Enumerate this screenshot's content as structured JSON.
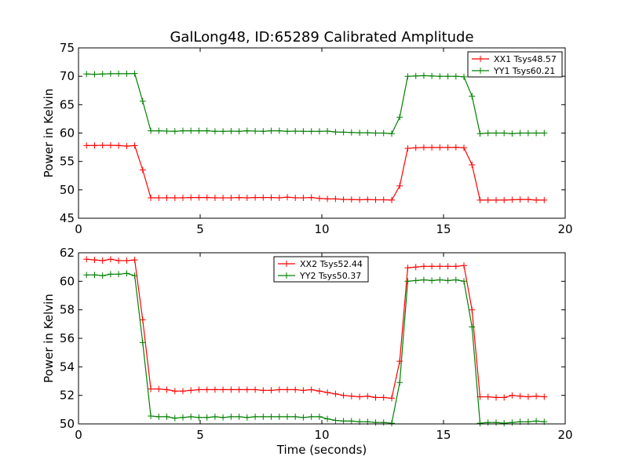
{
  "title": "GalLong48, ID:65289 Calibrated Amplitude",
  "xlabel": "Time (seconds)",
  "chart_data": [
    {
      "type": "line",
      "title": "GalLong48, ID:65289 Calibrated Amplitude",
      "xlabel": "",
      "ylabel": "Power in Kelvin",
      "xlim": [
        0,
        20
      ],
      "ylim": [
        45,
        75
      ],
      "xticks": [
        0,
        5,
        10,
        15,
        20
      ],
      "yticks": [
        45,
        50,
        55,
        60,
        65,
        70,
        75
      ],
      "legend": "top-right",
      "grid": false,
      "series": [
        {
          "name": "XX1 Tsys48.57",
          "color": "#ff0000",
          "x": [
            0.33,
            0.66,
            0.99,
            1.32,
            1.65,
            1.98,
            2.31,
            2.64,
            2.97,
            3.3,
            3.63,
            3.96,
            4.29,
            4.62,
            4.95,
            5.28,
            5.61,
            5.94,
            6.27,
            6.6,
            6.93,
            7.26,
            7.59,
            7.92,
            8.25,
            8.58,
            8.91,
            9.24,
            9.57,
            9.9,
            10.23,
            10.56,
            10.89,
            11.22,
            11.55,
            11.88,
            12.21,
            12.54,
            12.87,
            13.2,
            13.53,
            13.86,
            14.19,
            14.52,
            14.85,
            15.18,
            15.51,
            15.84,
            16.17,
            16.5,
            16.83,
            17.16,
            17.49,
            17.82,
            18.15,
            18.48,
            18.81,
            19.14
          ],
          "values": [
            57.8,
            57.8,
            57.85,
            57.85,
            57.8,
            57.7,
            57.8,
            53.5,
            48.6,
            48.6,
            48.6,
            48.6,
            48.6,
            48.65,
            48.65,
            48.65,
            48.6,
            48.6,
            48.6,
            48.65,
            48.6,
            48.65,
            48.65,
            48.65,
            48.6,
            48.7,
            48.6,
            48.6,
            48.65,
            48.5,
            48.4,
            48.4,
            48.3,
            48.3,
            48.25,
            48.3,
            48.25,
            48.25,
            48.2,
            50.7,
            57.3,
            57.4,
            57.45,
            57.45,
            57.45,
            57.45,
            57.5,
            57.4,
            54.4,
            48.2,
            48.2,
            48.2,
            48.2,
            48.25,
            48.3,
            48.3,
            48.2,
            48.2
          ]
        },
        {
          "name": "YY1 Tsys60.21",
          "color": "#008000",
          "x": [
            0.33,
            0.66,
            0.99,
            1.32,
            1.65,
            1.98,
            2.31,
            2.64,
            2.97,
            3.3,
            3.63,
            3.96,
            4.29,
            4.62,
            4.95,
            5.28,
            5.61,
            5.94,
            6.27,
            6.6,
            6.93,
            7.26,
            7.59,
            7.92,
            8.25,
            8.58,
            8.91,
            9.24,
            9.57,
            9.9,
            10.23,
            10.56,
            10.89,
            11.22,
            11.55,
            11.88,
            12.21,
            12.54,
            12.87,
            13.2,
            13.53,
            13.86,
            14.19,
            14.52,
            14.85,
            15.18,
            15.51,
            15.84,
            16.17,
            16.5,
            16.83,
            17.16,
            17.49,
            17.82,
            18.15,
            18.48,
            18.81,
            19.14
          ],
          "values": [
            70.4,
            70.35,
            70.4,
            70.45,
            70.45,
            70.45,
            70.5,
            65.6,
            60.4,
            60.4,
            60.35,
            60.3,
            60.4,
            60.4,
            60.4,
            60.4,
            60.3,
            60.3,
            60.35,
            60.3,
            60.4,
            60.35,
            60.3,
            60.4,
            60.4,
            60.3,
            60.35,
            60.3,
            60.3,
            60.3,
            60.35,
            60.2,
            60.15,
            60.1,
            60.05,
            60.05,
            60.0,
            60.0,
            59.9,
            62.8,
            70.0,
            70.05,
            70.1,
            70.05,
            70.0,
            70.0,
            70.0,
            69.9,
            66.5,
            59.9,
            60.0,
            60.0,
            60.0,
            59.9,
            60.0,
            60.0,
            60.0,
            60.0
          ]
        }
      ]
    },
    {
      "type": "line",
      "title": "",
      "xlabel": "Time (seconds)",
      "ylabel": "Power in Kelvin",
      "xlim": [
        0,
        20
      ],
      "ylim": [
        50,
        62
      ],
      "xticks": [
        0,
        5,
        10,
        15,
        20
      ],
      "yticks": [
        50,
        52,
        54,
        56,
        58,
        60,
        62
      ],
      "legend": "top-center",
      "grid": false,
      "series": [
        {
          "name": "XX2 Tsys52.44",
          "color": "#ff0000",
          "x": [
            0.33,
            0.66,
            0.99,
            1.32,
            1.65,
            1.98,
            2.31,
            2.64,
            2.97,
            3.3,
            3.63,
            3.96,
            4.29,
            4.62,
            4.95,
            5.28,
            5.61,
            5.94,
            6.27,
            6.6,
            6.93,
            7.26,
            7.59,
            7.92,
            8.25,
            8.58,
            8.91,
            9.24,
            9.57,
            9.9,
            10.23,
            10.56,
            10.89,
            11.22,
            11.55,
            11.88,
            12.21,
            12.54,
            12.87,
            13.2,
            13.53,
            13.86,
            14.19,
            14.52,
            14.85,
            15.18,
            15.51,
            15.84,
            16.17,
            16.5,
            16.83,
            17.16,
            17.49,
            17.82,
            18.15,
            18.48,
            18.81,
            19.14
          ],
          "values": [
            61.55,
            61.5,
            61.45,
            61.55,
            61.45,
            61.45,
            61.5,
            57.3,
            52.45,
            52.45,
            52.4,
            52.3,
            52.3,
            52.35,
            52.4,
            52.4,
            52.4,
            52.4,
            52.4,
            52.4,
            52.4,
            52.4,
            52.35,
            52.35,
            52.4,
            52.4,
            52.4,
            52.35,
            52.4,
            52.3,
            52.2,
            52.1,
            52.0,
            51.95,
            51.9,
            51.95,
            51.85,
            51.85,
            51.8,
            54.4,
            60.95,
            61.0,
            61.05,
            61.05,
            61.05,
            61.05,
            61.05,
            61.1,
            58.0,
            51.9,
            51.9,
            51.85,
            51.85,
            52.0,
            51.95,
            51.9,
            51.95,
            51.9
          ]
        },
        {
          "name": "YY2 Tsys50.37",
          "color": "#008000",
          "x": [
            0.33,
            0.66,
            0.99,
            1.32,
            1.65,
            1.98,
            2.31,
            2.64,
            2.97,
            3.3,
            3.63,
            3.96,
            4.29,
            4.62,
            4.95,
            5.28,
            5.61,
            5.94,
            6.27,
            6.6,
            6.93,
            7.26,
            7.59,
            7.92,
            8.25,
            8.58,
            8.91,
            9.24,
            9.57,
            9.9,
            10.23,
            10.56,
            10.89,
            11.22,
            11.55,
            11.88,
            12.21,
            12.54,
            12.87,
            13.2,
            13.53,
            13.86,
            14.19,
            14.52,
            14.85,
            15.18,
            15.51,
            15.84,
            16.17,
            16.5,
            16.83,
            17.16,
            17.49,
            17.82,
            18.15,
            18.48,
            18.81,
            19.14
          ],
          "values": [
            60.45,
            60.45,
            60.4,
            60.5,
            60.5,
            60.55,
            60.4,
            55.7,
            50.55,
            50.5,
            50.5,
            50.4,
            50.45,
            50.5,
            50.45,
            50.45,
            50.5,
            50.45,
            50.5,
            50.5,
            50.45,
            50.5,
            50.5,
            50.5,
            50.5,
            50.5,
            50.5,
            50.45,
            50.5,
            50.5,
            50.35,
            50.25,
            50.2,
            50.2,
            50.15,
            50.15,
            50.1,
            50.1,
            50.05,
            52.9,
            60.0,
            60.05,
            60.1,
            60.05,
            60.1,
            60.05,
            60.1,
            60.0,
            56.8,
            50.05,
            50.1,
            50.1,
            50.05,
            50.1,
            50.15,
            50.15,
            50.2,
            50.15
          ]
        }
      ]
    }
  ]
}
